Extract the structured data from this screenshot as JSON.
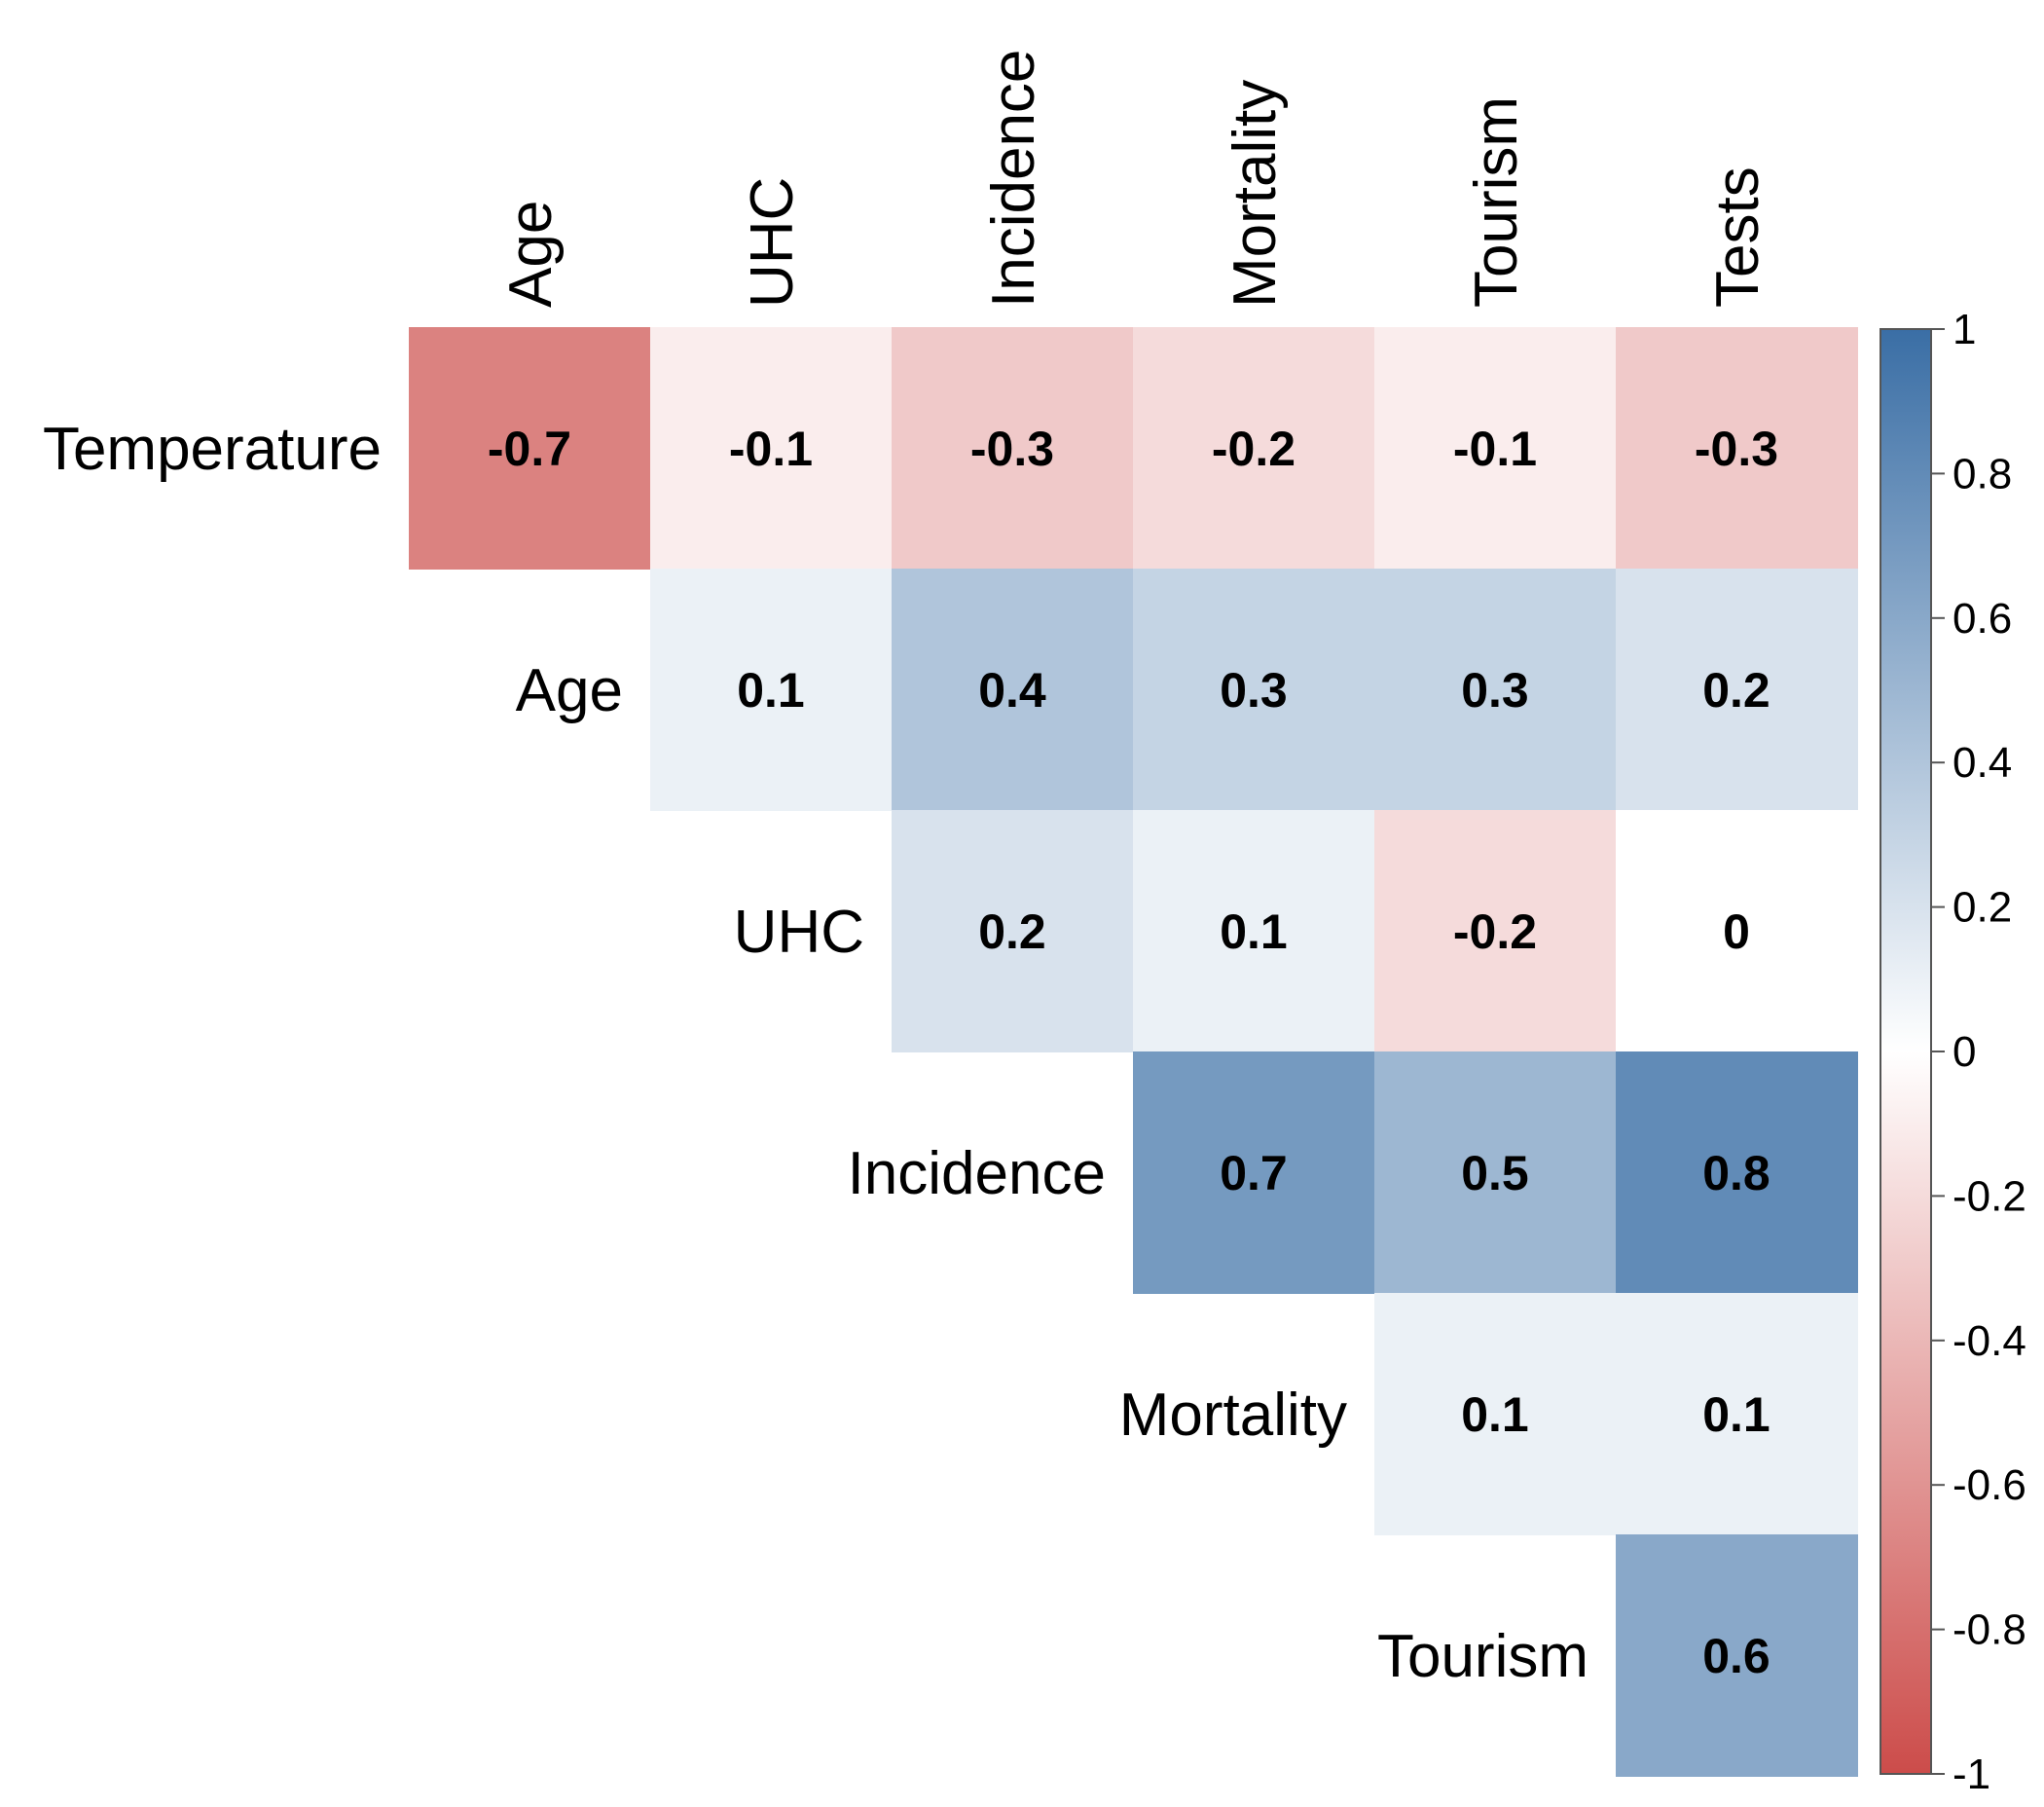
{
  "chart_data": {
    "type": "heatmap",
    "layout": "upper-triangular correlation matrix",
    "row_labels": [
      "Temperature",
      "Age",
      "UHC",
      "Incidence",
      "Mortality",
      "Tourism"
    ],
    "col_labels": [
      "Age",
      "UHC",
      "Incidence",
      "Mortality",
      "Tourism",
      "Tests"
    ],
    "values": [
      [
        -0.7,
        -0.1,
        -0.3,
        -0.2,
        -0.1,
        -0.3
      ],
      [
        null,
        0.1,
        0.4,
        0.3,
        0.3,
        0.2
      ],
      [
        null,
        null,
        0.2,
        0.1,
        -0.2,
        0
      ],
      [
        null,
        null,
        null,
        0.7,
        0.5,
        0.8
      ],
      [
        null,
        null,
        null,
        null,
        0.1,
        0.1
      ],
      [
        null,
        null,
        null,
        null,
        null,
        0.6
      ]
    ],
    "cell_labels": [
      [
        "-0.7",
        "-0.1",
        "-0.3",
        "-0.2",
        "-0.1",
        "-0.3"
      ],
      [
        null,
        "0.1",
        "0.4",
        "0.3",
        "0.3",
        "0.2"
      ],
      [
        null,
        null,
        "0.2",
        "0.1",
        "-0.2",
        "0"
      ],
      [
        null,
        null,
        null,
        "0.7",
        "0.5",
        "0.8"
      ],
      [
        null,
        null,
        null,
        null,
        "0.1",
        "0.1"
      ],
      [
        null,
        null,
        null,
        null,
        null,
        "0.6"
      ]
    ],
    "colorbar": {
      "range": [
        -1,
        1
      ],
      "ticks": [
        1,
        0.8,
        0.6,
        0.4,
        0.2,
        0,
        -0.2,
        -0.4,
        -0.6,
        -0.8,
        -1
      ],
      "tick_labels": [
        "1",
        "0.8",
        "0.6",
        "0.4",
        "0.2",
        "0",
        "-0.2",
        "-0.4",
        "-0.6",
        "-0.8",
        "-1"
      ],
      "colors": {
        "negative": "#CC4C4A",
        "mid": "#FFFFFF",
        "positive": "#3A6EA5"
      },
      "placement": "right"
    },
    "title": "",
    "grid": false
  }
}
